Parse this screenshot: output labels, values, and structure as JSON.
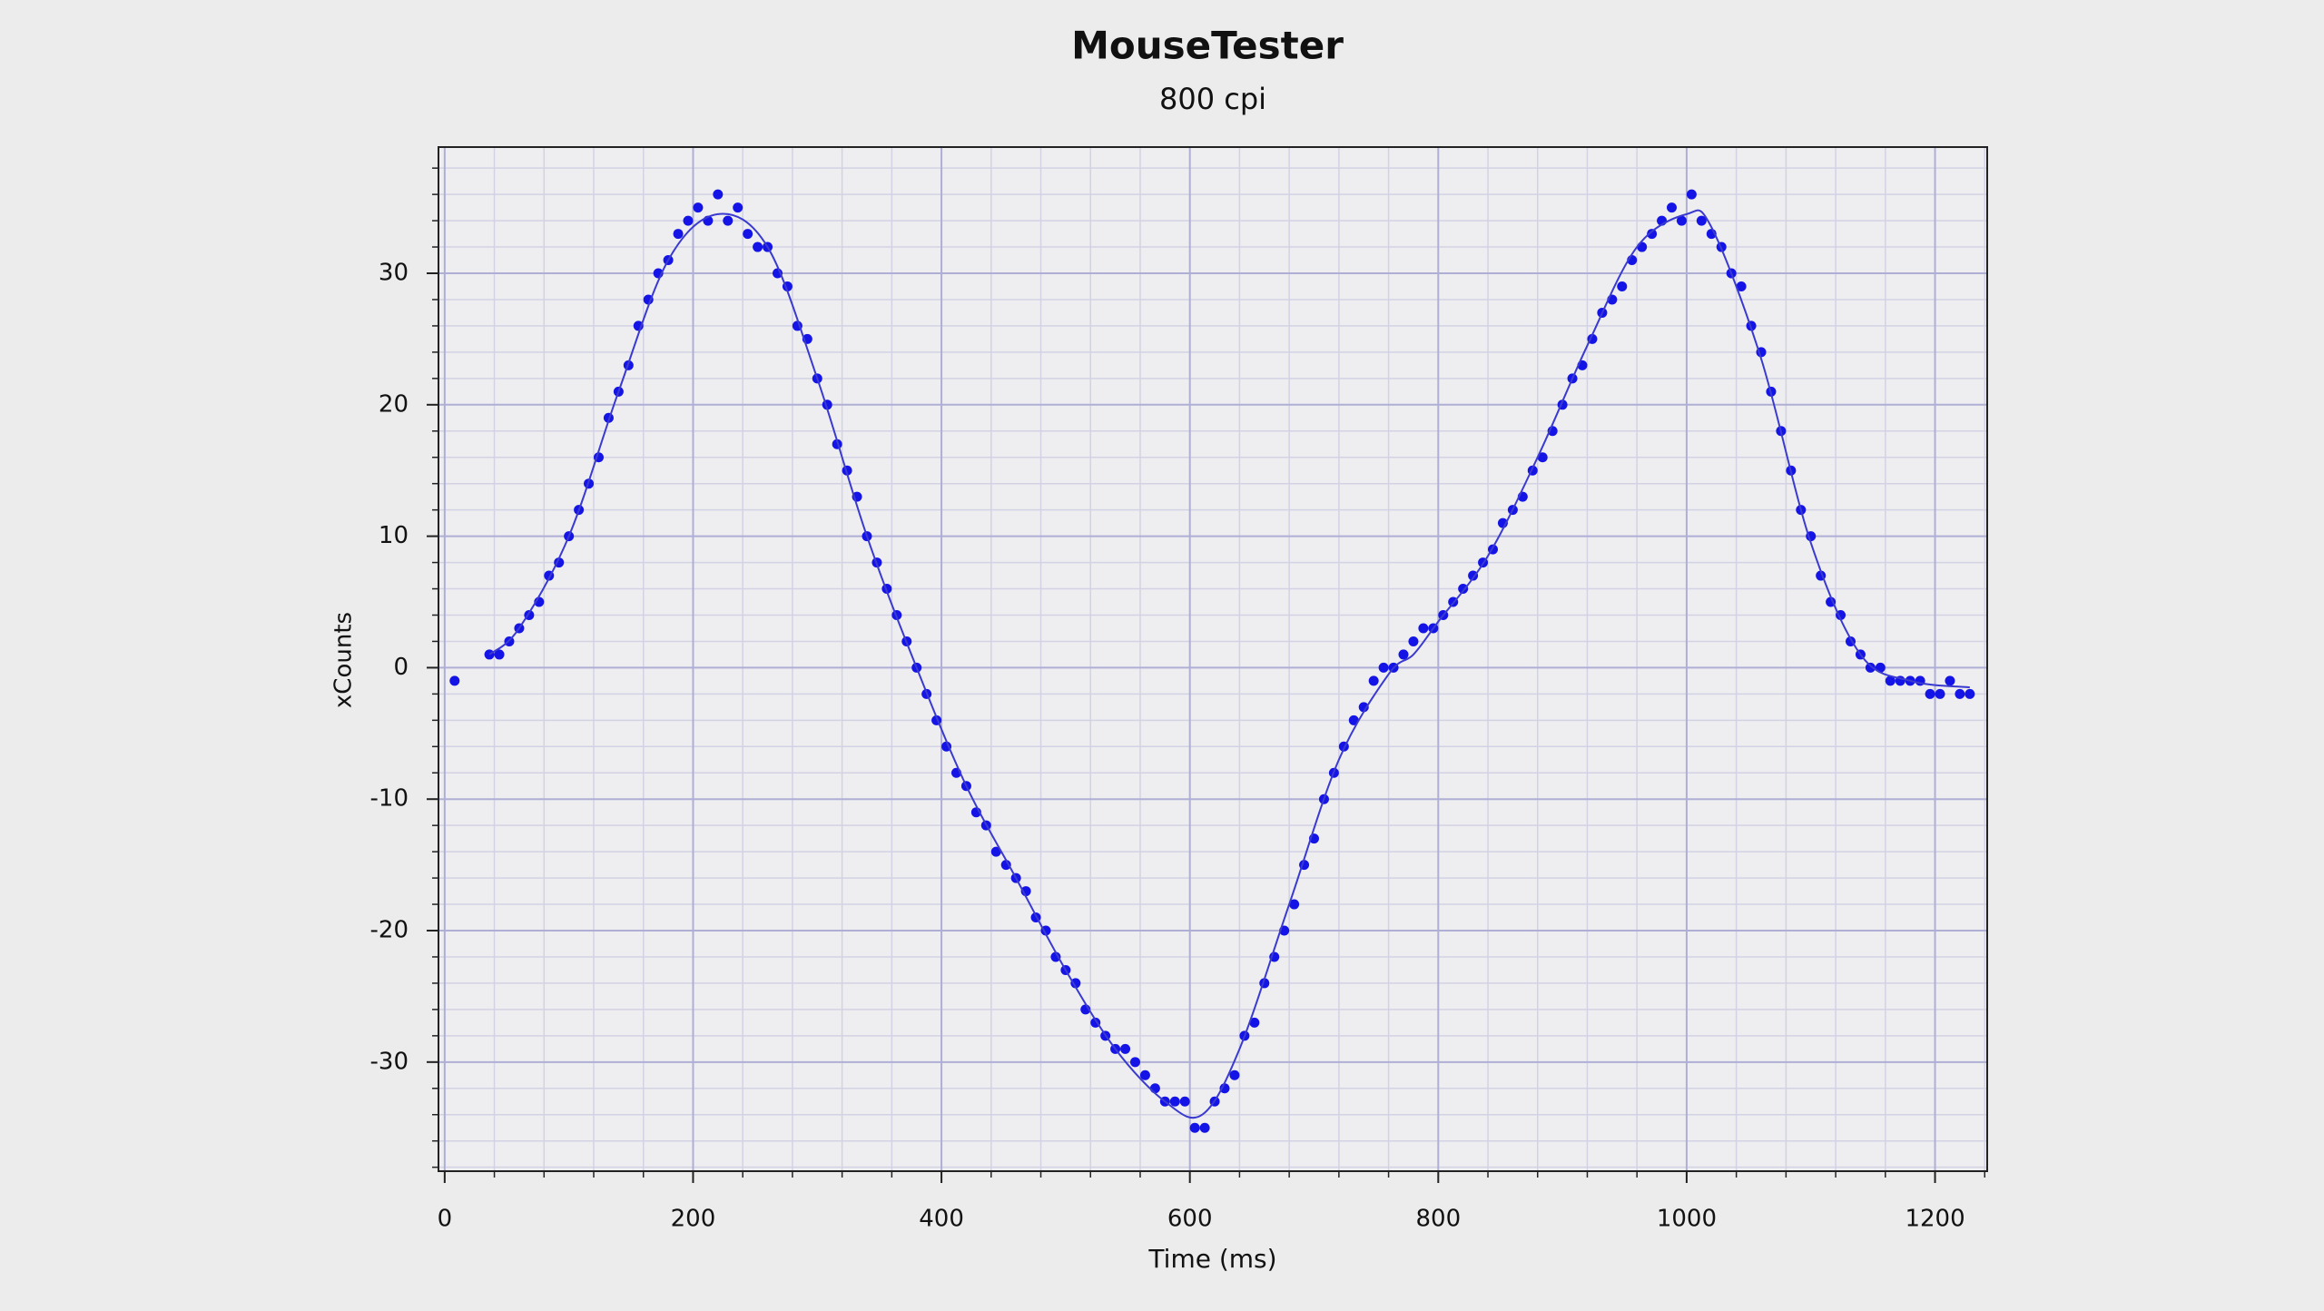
{
  "chart_data": {
    "type": "scatter",
    "title": "MouseTester",
    "subtitle": "800 cpi",
    "x_label": "Time (ms)",
    "y_label": "xCounts",
    "xlim": [
      -5,
      1242
    ],
    "ylim": [
      -38.3,
      39.6
    ],
    "xticks": [
      0,
      200,
      400,
      600,
      800,
      1000,
      1200
    ],
    "yticks": [
      -30,
      -20,
      -10,
      0,
      10,
      20,
      30
    ],
    "minor_step": {
      "x": 40,
      "y": 2
    },
    "grid": true,
    "series": [
      {
        "color": "#1414e6",
        "marker": "dot",
        "x": [
          8,
          36,
          44,
          52,
          60,
          68,
          76,
          84,
          92,
          100,
          108,
          116,
          124,
          132,
          140,
          148,
          156,
          164,
          172,
          180,
          188,
          196,
          204,
          212,
          220,
          228,
          236,
          244,
          252,
          260,
          268,
          276,
          284,
          292,
          300,
          308,
          316,
          324,
          332,
          340,
          348,
          356,
          364,
          372,
          380,
          388,
          396,
          404,
          412,
          420,
          428,
          436,
          444,
          452,
          460,
          468,
          476,
          484,
          492,
          500,
          508,
          516,
          524,
          532,
          540,
          548,
          556,
          564,
          572,
          580,
          588,
          596,
          604,
          612,
          620,
          628,
          636,
          644,
          652,
          660,
          668,
          676,
          684,
          692,
          700,
          708,
          716,
          724,
          732,
          740,
          748,
          756,
          764,
          772,
          780,
          788,
          796,
          804,
          812,
          820,
          828,
          836,
          844,
          852,
          860,
          868,
          876,
          884,
          892,
          900,
          908,
          916,
          924,
          932,
          940,
          948,
          956,
          964,
          972,
          980,
          988,
          996,
          1004,
          1012,
          1020,
          1028,
          1036,
          1044,
          1052,
          1060,
          1068,
          1076,
          1084,
          1092,
          1100,
          1108,
          1116,
          1124,
          1132,
          1140,
          1148,
          1156,
          1164,
          1172,
          1180,
          1188,
          1196,
          1204,
          1212,
          1220,
          1228
        ],
        "values": [
          -1,
          1,
          1,
          2,
          3,
          4,
          5,
          7,
          8,
          10,
          12,
          14,
          16,
          19,
          21,
          23,
          26,
          28,
          30,
          31,
          33,
          34,
          35,
          34,
          36,
          34,
          35,
          33,
          32,
          32,
          30,
          29,
          26,
          25,
          22,
          20,
          17,
          15,
          13,
          10,
          8,
          6,
          4,
          2,
          0,
          -2,
          -4,
          -6,
          -8,
          -9,
          -11,
          -12,
          -14,
          -15,
          -16,
          -17,
          -19,
          -20,
          -22,
          -23,
          -24,
          -26,
          -27,
          -28,
          -29,
          -29,
          -30,
          -31,
          -32,
          -33,
          -33,
          -33,
          -35,
          -35,
          -33,
          -32,
          -31,
          -28,
          -27,
          -24,
          -22,
          -20,
          -18,
          -15,
          -13,
          -10,
          -8,
          -6,
          -4,
          -3,
          -1,
          0,
          0,
          1,
          2,
          3,
          3,
          4,
          5,
          6,
          7,
          8,
          9,
          11,
          12,
          13,
          15,
          16,
          18,
          20,
          22,
          23,
          25,
          27,
          28,
          29,
          31,
          32,
          33,
          34,
          35,
          34,
          36,
          34,
          33,
          32,
          30,
          29,
          26,
          24,
          21,
          18,
          15,
          12,
          10,
          7,
          5,
          4,
          2,
          1,
          0,
          0,
          -1,
          -1,
          -1,
          -1,
          -2,
          -2,
          -1,
          -2,
          -2
        ]
      },
      {
        "color": "#3a3ad0",
        "marker": "line",
        "x": [
          36,
          60,
          100,
          140,
          180,
          220,
          260,
          300,
          340,
          380,
          420,
          460,
          500,
          540,
          580,
          610,
          640,
          680,
          720,
          760,
          780,
          800,
          840,
          880,
          920,
          960,
          1000,
          1020,
          1060,
          1100,
          1140,
          1180,
          1228
        ],
        "values": [
          1,
          3,
          10,
          21,
          31,
          34.5,
          32,
          22,
          10,
          0,
          -9,
          -16,
          -23,
          -29,
          -33,
          -34,
          -29,
          -18,
          -7,
          -0.5,
          1,
          3.5,
          8.5,
          16,
          24.5,
          32,
          34.5,
          33.5,
          23.5,
          9.5,
          1,
          -1,
          -1.5
        ]
      }
    ]
  }
}
